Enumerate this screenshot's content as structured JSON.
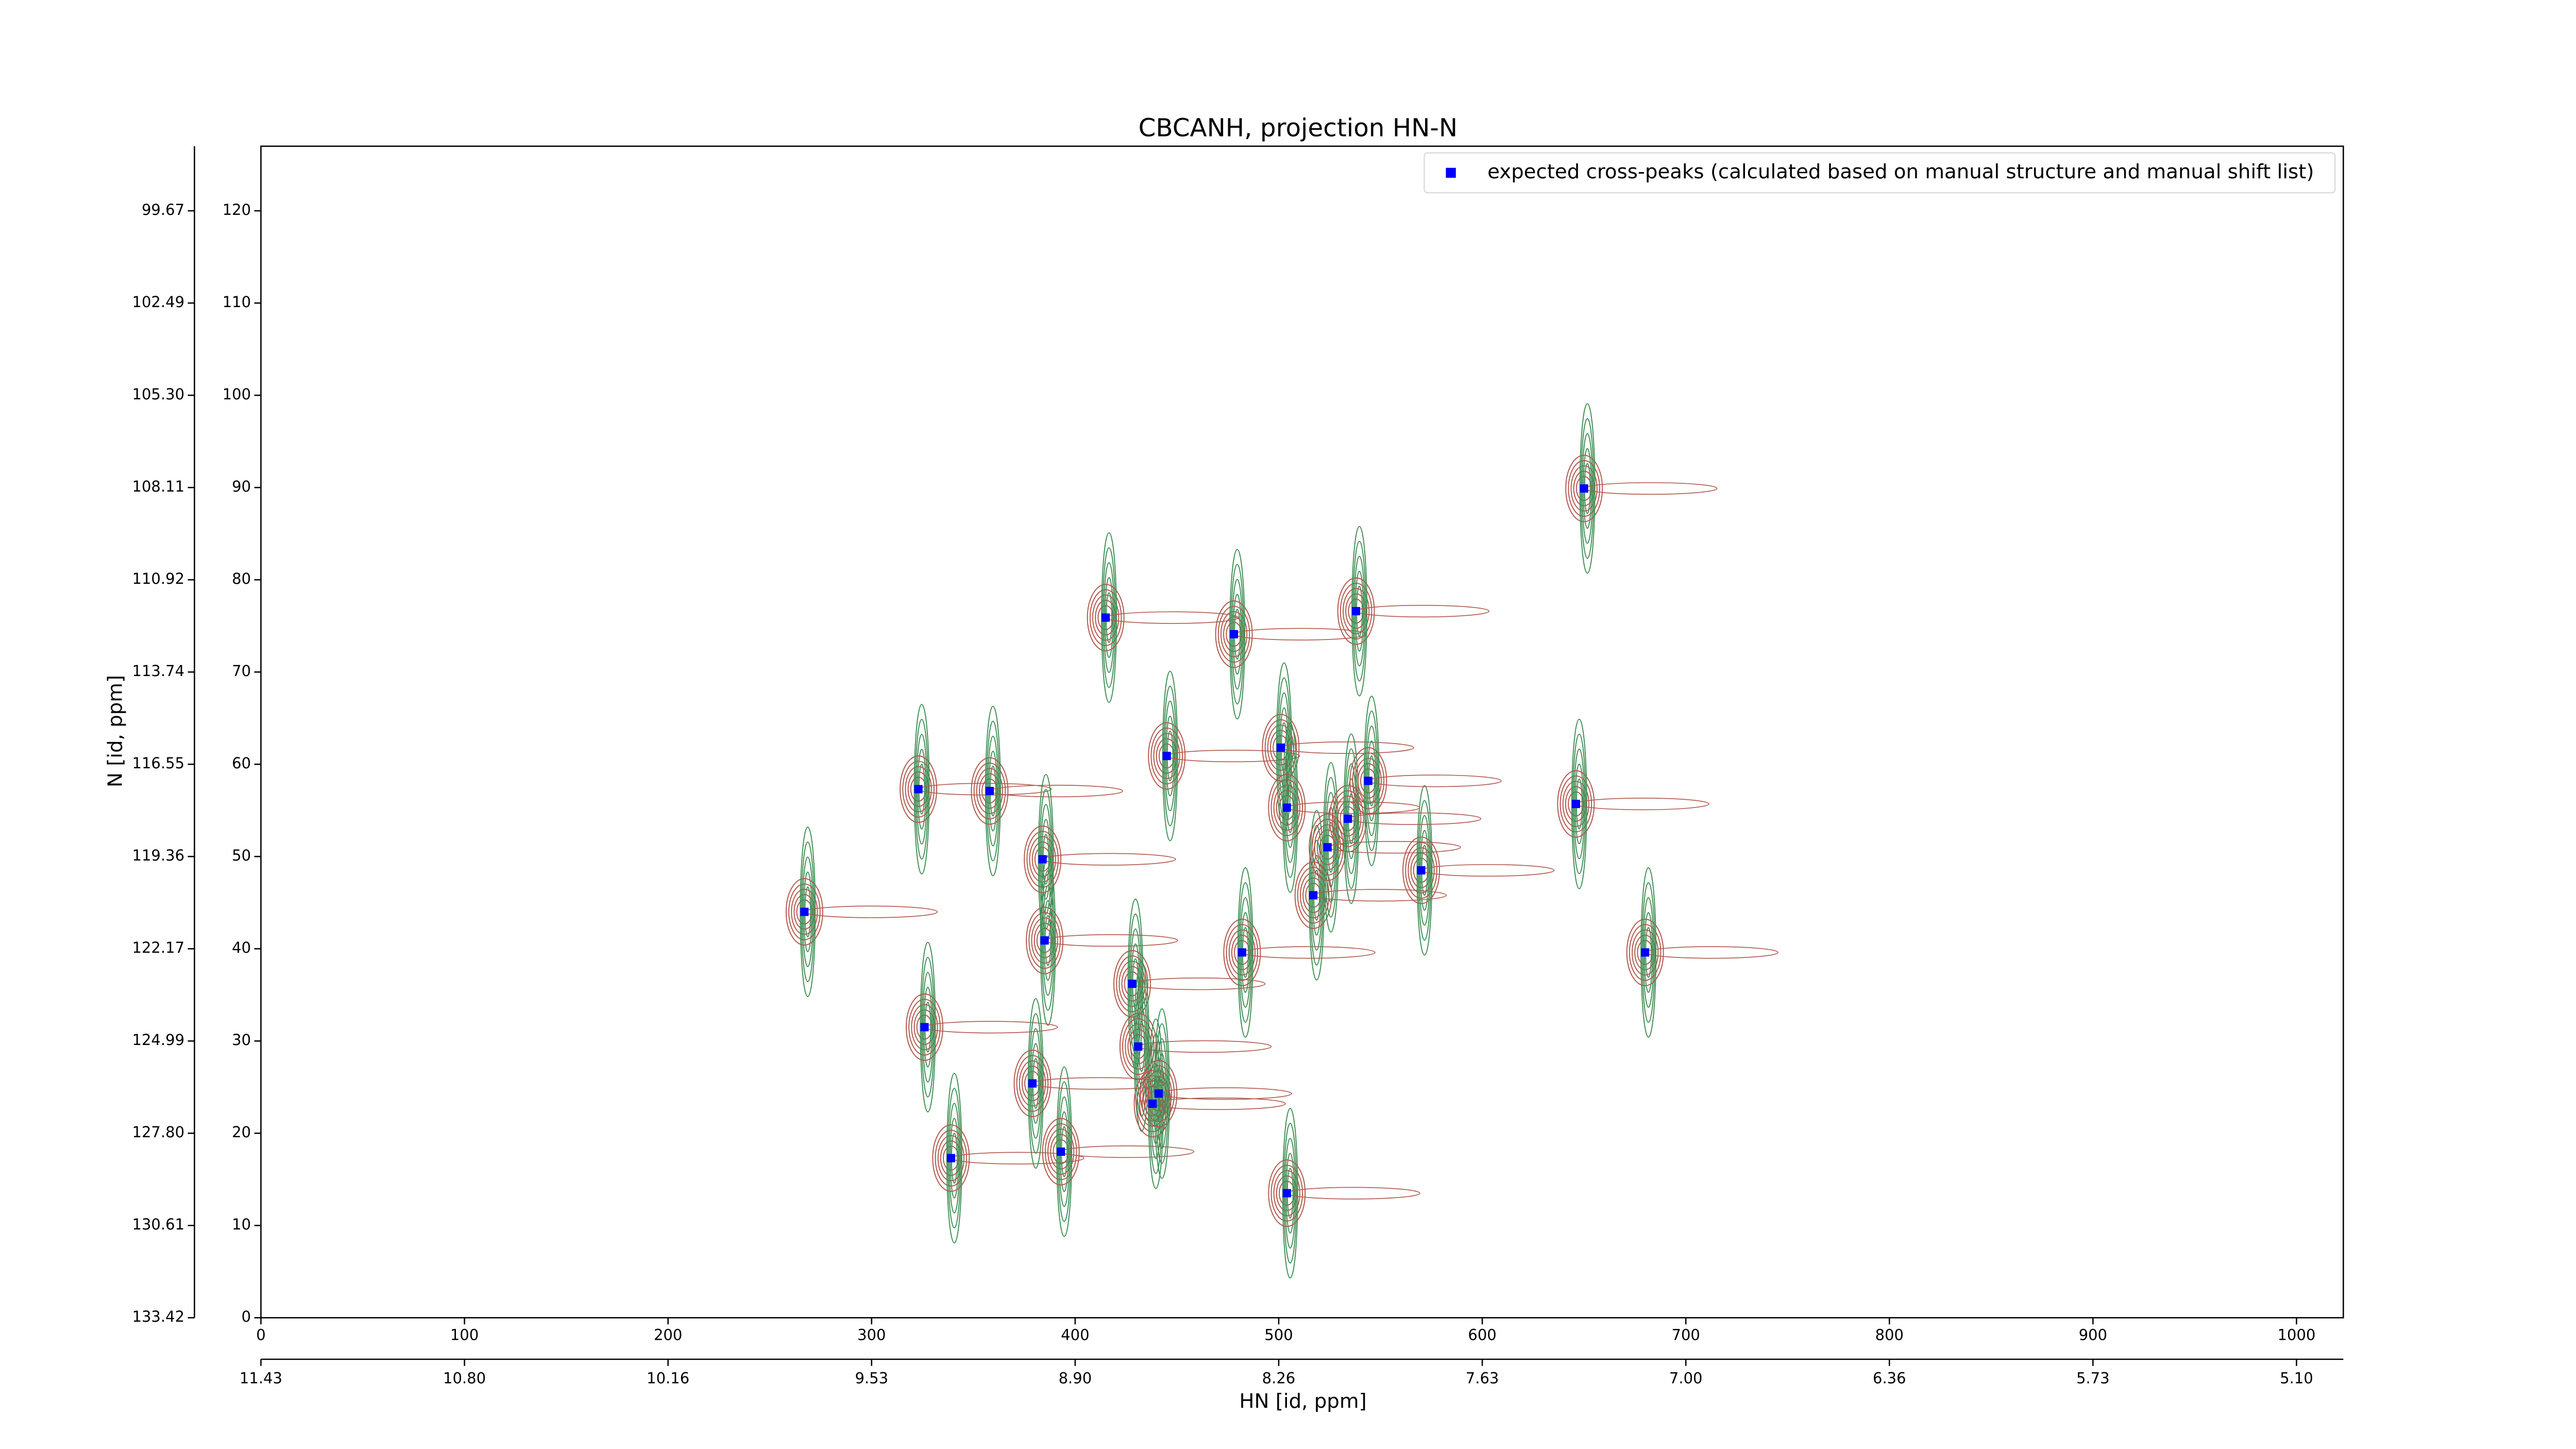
{
  "chart_data": {
    "type": "scatter",
    "title": "CBCANH, projection HN-N",
    "x_label": "HN [id, ppm]",
    "y_label": "N [id, ppm]",
    "xlim": [
      0,
      1023
    ],
    "ylim": [
      0,
      127
    ],
    "xticks": [
      0,
      100,
      200,
      300,
      400,
      500,
      600,
      700,
      800,
      900,
      1000
    ],
    "yticks": [
      0,
      10,
      20,
      30,
      40,
      50,
      60,
      70,
      80,
      90,
      100,
      110,
      120
    ],
    "xticks_ppm": [
      {
        "value": 0,
        "label": "11.43"
      },
      {
        "value": 100,
        "label": "10.80"
      },
      {
        "value": 200,
        "label": "10.16"
      },
      {
        "value": 300,
        "label": "9.53"
      },
      {
        "value": 400,
        "label": "8.90"
      },
      {
        "value": 500,
        "label": "8.26"
      },
      {
        "value": 600,
        "label": "7.63"
      },
      {
        "value": 700,
        "label": "7.00"
      },
      {
        "value": 800,
        "label": "6.36"
      },
      {
        "value": 900,
        "label": "5.73"
      },
      {
        "value": 1000,
        "label": "5.10"
      }
    ],
    "yticks_ppm": [
      {
        "value": 0,
        "label": "133.42"
      },
      {
        "value": 10,
        "label": "130.61"
      },
      {
        "value": 20,
        "label": "127.80"
      },
      {
        "value": 30,
        "label": "124.99"
      },
      {
        "value": 40,
        "label": "122.17"
      },
      {
        "value": 50,
        "label": "119.36"
      },
      {
        "value": 60,
        "label": "116.55"
      },
      {
        "value": 70,
        "label": "113.74"
      },
      {
        "value": 80,
        "label": "110.92"
      },
      {
        "value": 90,
        "label": "108.11"
      },
      {
        "value": 100,
        "label": "105.30"
      },
      {
        "value": 110,
        "label": "102.49"
      },
      {
        "value": 120,
        "label": "99.67"
      }
    ],
    "legend": "upper right",
    "contour_colors": [
      "#b2574c",
      "#3f8f55"
    ],
    "series": [
      {
        "name": "expected cross-peaks (calculated based on manual structure and manual shift list)",
        "color": "#0000ff",
        "x": [
          267,
          323,
          358,
          384,
          385,
          326,
          339,
          379,
          393,
          415,
          428,
          431,
          438,
          441,
          445,
          478,
          482,
          501,
          504,
          504,
          517,
          524,
          534,
          538,
          544,
          570,
          646,
          650,
          680
        ],
        "y": [
          44,
          57.3,
          57.1,
          49.7,
          40.9,
          31.5,
          17.3,
          25.4,
          18.0,
          75.9,
          36.2,
          29.4,
          23.2,
          24.3,
          60.9,
          74.1,
          39.6,
          61.8,
          55.3,
          13.5,
          45.8,
          51.0,
          54.1,
          76.6,
          58.2,
          48.5,
          55.7,
          89.9,
          39.6
        ]
      }
    ]
  }
}
